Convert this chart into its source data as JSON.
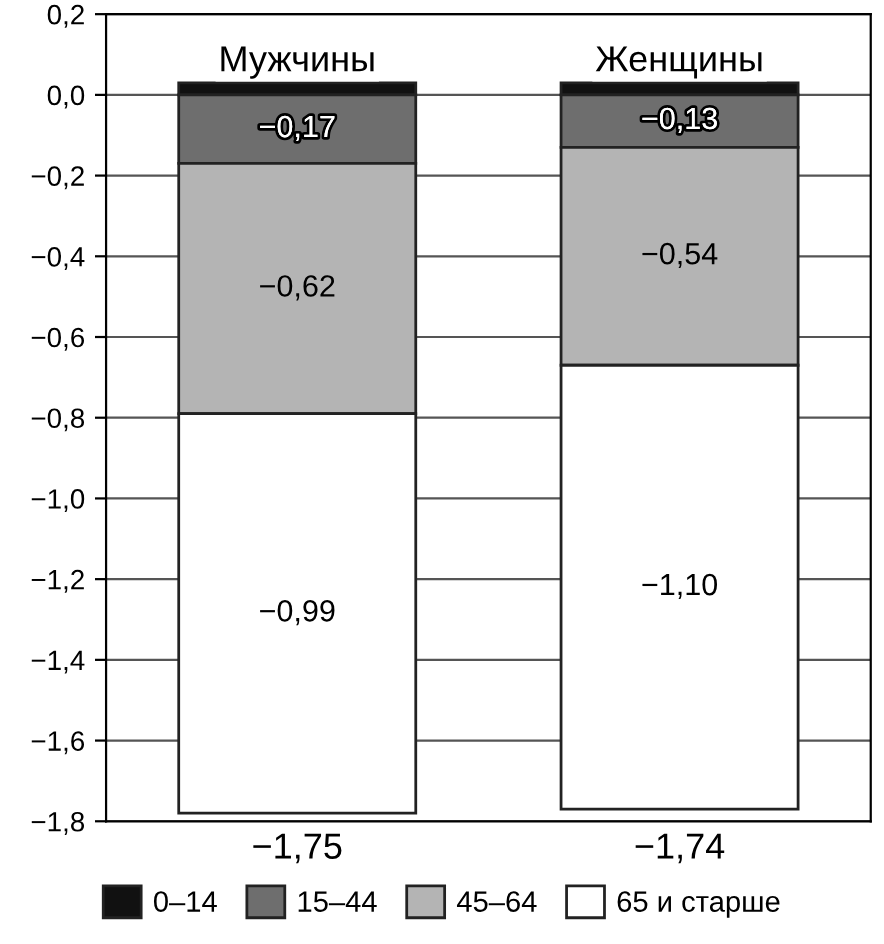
{
  "chart_data": {
    "type": "bar",
    "stacked": true,
    "categories": [
      "Мужчины",
      "Женщины"
    ],
    "series": [
      {
        "name": "0–14",
        "color": "#111111",
        "values": [
          0.03,
          0.03
        ]
      },
      {
        "name": "15–44",
        "color": "#6e6e6e",
        "values": [
          -0.17,
          -0.13
        ],
        "value_labels": [
          "−0,17",
          "−0,13"
        ]
      },
      {
        "name": "45–64",
        "color": "#b4b4b4",
        "values": [
          -0.62,
          -0.54
        ],
        "value_labels": [
          "−0,62",
          "−0,54"
        ]
      },
      {
        "name": "65 и старше",
        "color": "#ffffff",
        "values": [
          -0.99,
          -1.1
        ],
        "value_labels": [
          "−0,99",
          "−1,10"
        ]
      }
    ],
    "totals": [
      "−1,75",
      "−1,74"
    ],
    "ylim": [
      -1.8,
      0.2
    ],
    "yticks": [
      {
        "value": -1.8,
        "label": "−1,8"
      },
      {
        "value": -1.6,
        "label": "−1,6"
      },
      {
        "value": -1.4,
        "label": "−1,4"
      },
      {
        "value": -1.2,
        "label": "−1,2"
      },
      {
        "value": -1.0,
        "label": "−1,0"
      },
      {
        "value": -0.8,
        "label": "−0,8"
      },
      {
        "value": -0.6,
        "label": "−0,6"
      },
      {
        "value": -0.4,
        "label": "−0,4"
      },
      {
        "value": -0.2,
        "label": "−0,2"
      },
      {
        "value": 0.0,
        "label": "0,0"
      },
      {
        "value": 0.2,
        "label": "0,2"
      }
    ],
    "grid": "y",
    "legend": "bottom"
  }
}
